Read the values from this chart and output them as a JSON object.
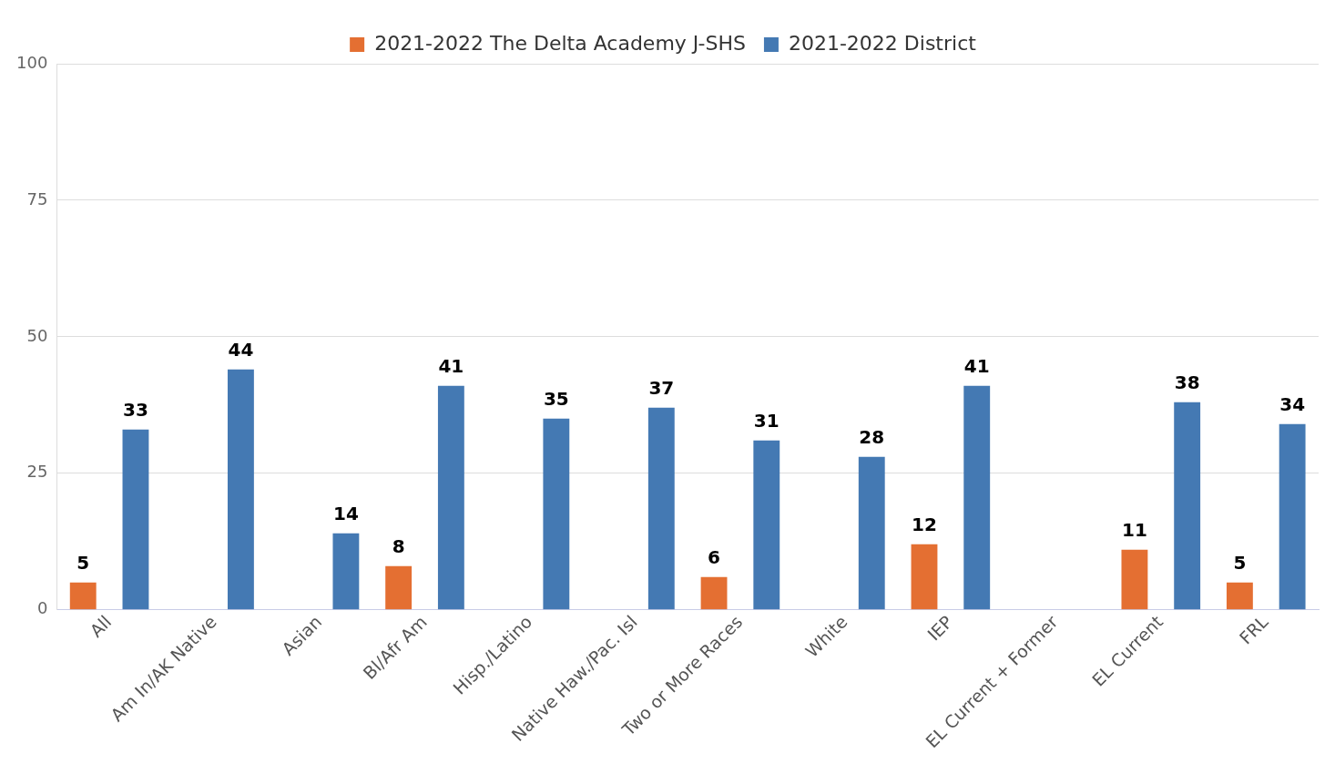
{
  "chart_data": {
    "type": "bar",
    "categories": [
      "All",
      "Am In/AK Native",
      "Asian",
      "Bl/Afr Am",
      "Hisp./Latino",
      "Native Haw./Pac. Isl",
      "Two or More Races",
      "White",
      "IEP",
      "EL Current + Former",
      "EL Current",
      "FRL"
    ],
    "series": [
      {
        "name": "2021-2022 The Delta Academy J-SHS",
        "color": "#e46f32",
        "values": [
          5,
          null,
          null,
          8,
          null,
          null,
          6,
          null,
          12,
          null,
          11,
          5
        ]
      },
      {
        "name": "2021-2022 District",
        "color": "#4479b3",
        "values": [
          33,
          44,
          14,
          41,
          35,
          37,
          31,
          28,
          41,
          null,
          38,
          34
        ]
      }
    ],
    "ylim": [
      0,
      100
    ],
    "yticks": [
      0,
      25,
      50,
      75,
      100
    ],
    "grid": "y",
    "legend": "top",
    "data_labels": true
  }
}
